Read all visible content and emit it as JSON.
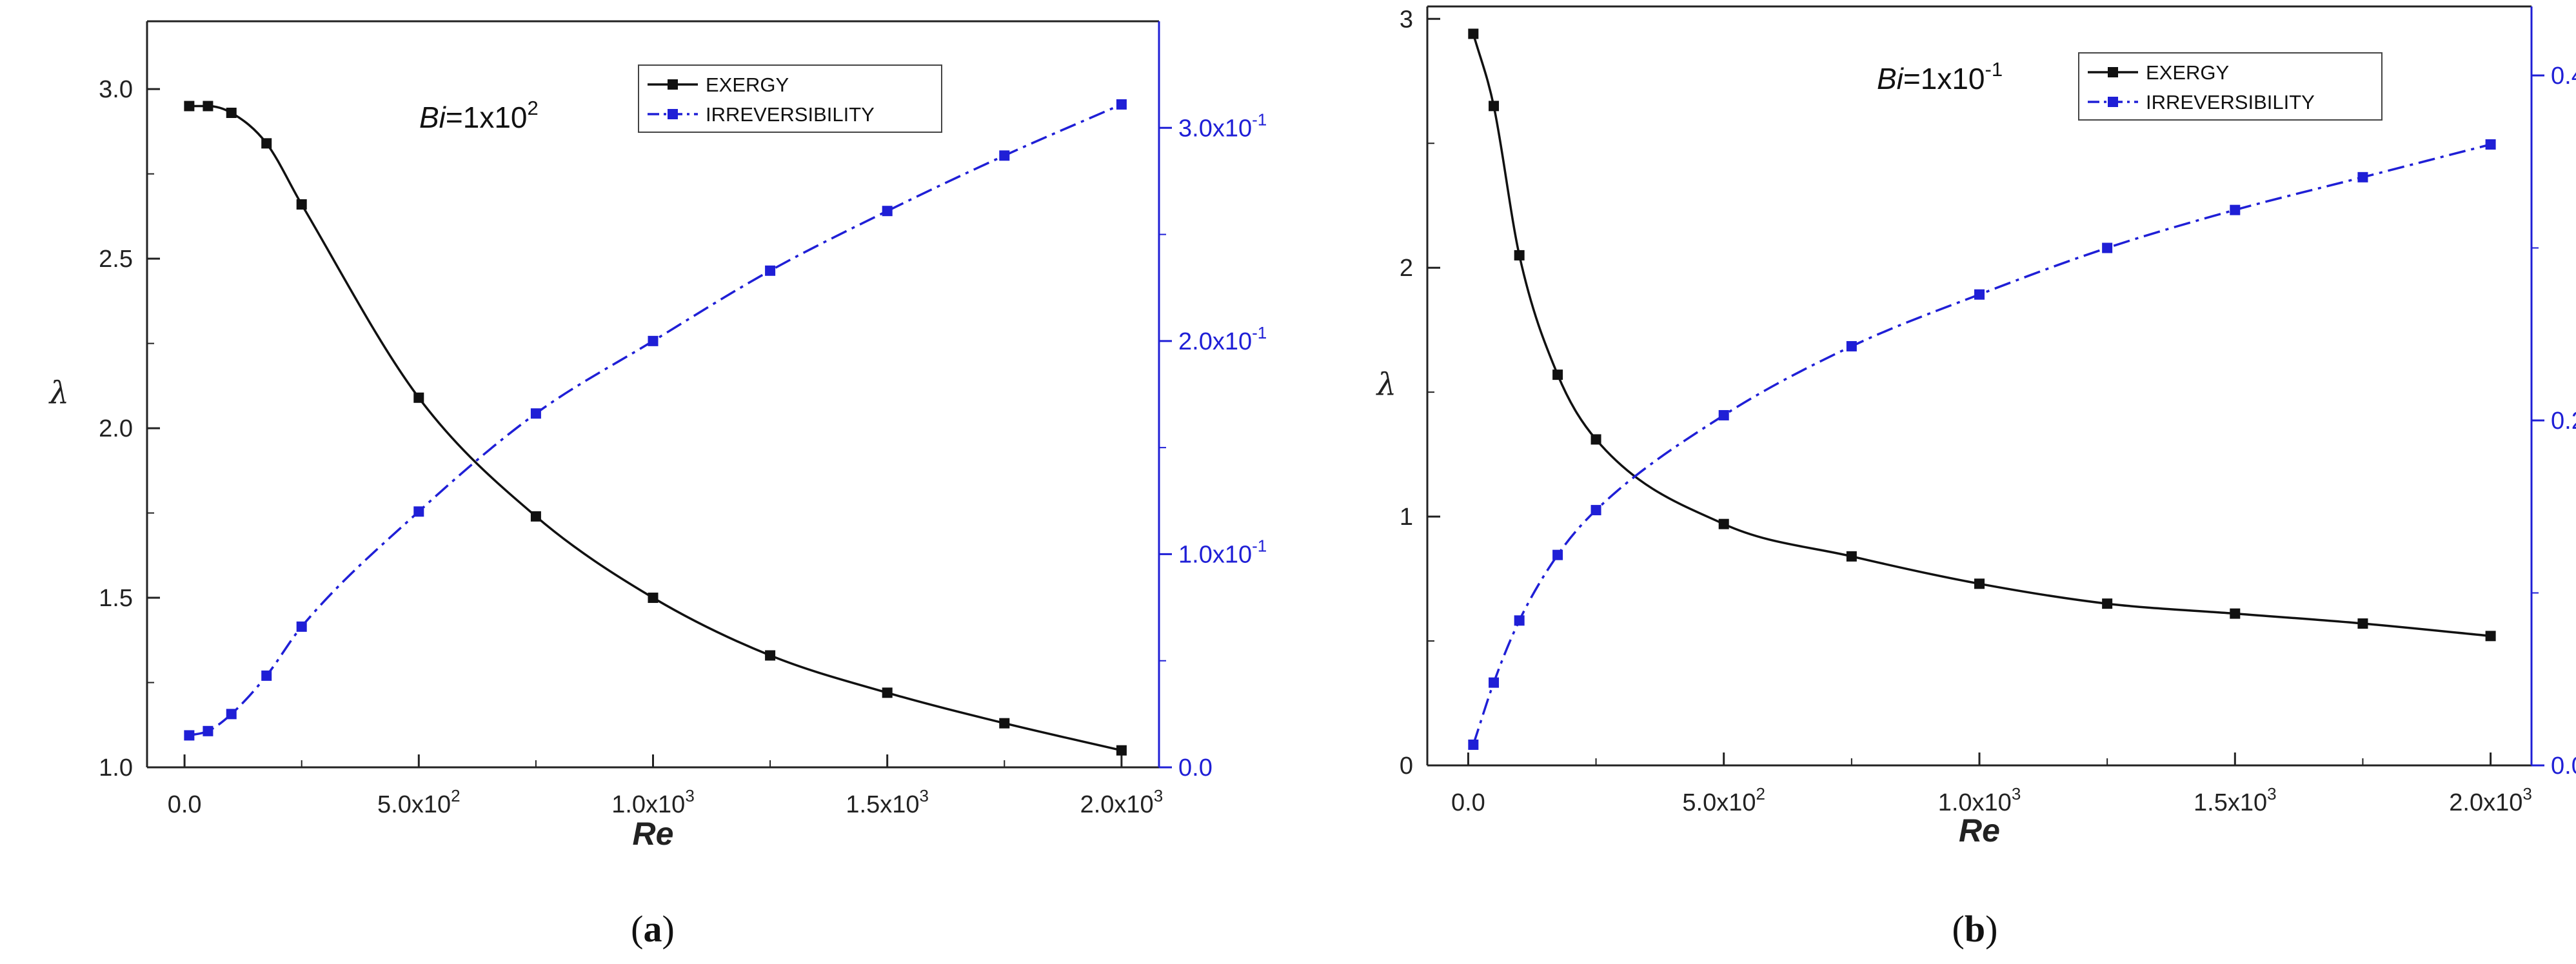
{
  "chart_data": [
    {
      "type": "line",
      "panel_label": "(a)",
      "panel_letter": "a",
      "annotation": "Bi=1x10^2",
      "annotation_parts": {
        "var": "Bi",
        "base": "=1x10",
        "exp": "2"
      },
      "xlabel": "Re",
      "ylabel": "λ",
      "xlim": [
        -80,
        2080
      ],
      "ylim": [
        1.0,
        3.2
      ],
      "y2lim": [
        0.0,
        0.35
      ],
      "x_ticks": [
        0,
        500,
        1000,
        1500,
        2000
      ],
      "x_tick_labels": [
        {
          "base": "0.0",
          "exp": ""
        },
        {
          "base": "5.0x10",
          "exp": "2"
        },
        {
          "base": "1.0x10",
          "exp": "3"
        },
        {
          "base": "1.5x10",
          "exp": "3"
        },
        {
          "base": "2.0x10",
          "exp": "3"
        }
      ],
      "y_ticks": [
        1.0,
        1.5,
        2.0,
        2.5,
        3.0
      ],
      "y_tick_labels": [
        "1.0",
        "1.5",
        "2.0",
        "2.5",
        "3.0"
      ],
      "y2_ticks": [
        0.0,
        0.1,
        0.2,
        0.3
      ],
      "y2_tick_labels": [
        {
          "base": "0.0",
          "exp": ""
        },
        {
          "base": "1.0x10",
          "exp": "-1"
        },
        {
          "base": "2.0x10",
          "exp": "-1"
        },
        {
          "base": "3.0x10",
          "exp": "-1"
        }
      ],
      "legend_position": "top-center",
      "series": [
        {
          "name": "EXERGY",
          "axis": "left",
          "color": "#111111",
          "style": "solid",
          "x": [
            10,
            50,
            100,
            175,
            250,
            500,
            750,
            1000,
            1250,
            1500,
            1750,
            2000
          ],
          "y": [
            2.95,
            2.95,
            2.93,
            2.84,
            2.66,
            2.09,
            1.74,
            1.5,
            1.33,
            1.22,
            1.13,
            1.05
          ]
        },
        {
          "name": "IRREVERSIBILITY",
          "axis": "right",
          "color": "#1f1fd6",
          "style": "dash-dot",
          "x": [
            10,
            50,
            100,
            175,
            250,
            500,
            750,
            1000,
            1250,
            1500,
            1750,
            2000
          ],
          "y": [
            0.015,
            0.017,
            0.025,
            0.043,
            0.066,
            0.12,
            0.166,
            0.2,
            0.233,
            0.261,
            0.287,
            0.311
          ]
        }
      ]
    },
    {
      "type": "line",
      "panel_label": "(b)",
      "panel_letter": "b",
      "annotation": "Bi=1x10^-1",
      "annotation_parts": {
        "var": "Bi",
        "base": "=1x10",
        "exp": "-1"
      },
      "xlabel": "Re",
      "ylabel": "λ",
      "xlim": [
        -80,
        2080
      ],
      "ylim": [
        0,
        3.05
      ],
      "y2lim": [
        0.0,
        0.44
      ],
      "x_ticks": [
        0,
        500,
        1000,
        1500,
        2000
      ],
      "x_tick_labels": [
        {
          "base": "0.0",
          "exp": ""
        },
        {
          "base": "5.0x10",
          "exp": "2"
        },
        {
          "base": "1.0x10",
          "exp": "3"
        },
        {
          "base": "1.5x10",
          "exp": "3"
        },
        {
          "base": "2.0x10",
          "exp": "3"
        }
      ],
      "y_ticks": [
        0,
        1,
        2,
        3
      ],
      "y_tick_labels": [
        "0",
        "1",
        "2",
        "3"
      ],
      "y2_ticks": [
        0.0,
        0.2,
        0.4
      ],
      "y2_tick_labels": [
        {
          "base": "0.0",
          "exp": ""
        },
        {
          "base": "0.2",
          "exp": ""
        },
        {
          "base": "0.4",
          "exp": ""
        }
      ],
      "legend_position": "top-center",
      "series": [
        {
          "name": "EXERGY",
          "axis": "left",
          "color": "#111111",
          "style": "solid",
          "x": [
            10,
            50,
            100,
            175,
            250,
            500,
            750,
            1000,
            1250,
            1500,
            1750,
            2000
          ],
          "y": [
            2.94,
            2.65,
            2.05,
            1.57,
            1.31,
            0.97,
            0.84,
            0.73,
            0.65,
            0.61,
            0.57,
            0.52
          ]
        },
        {
          "name": "IRREVERSIBILITY",
          "axis": "right",
          "color": "#1f1fd6",
          "style": "dash-dot",
          "x": [
            10,
            50,
            100,
            175,
            250,
            500,
            750,
            1000,
            1250,
            1500,
            1750,
            2000
          ],
          "y": [
            0.012,
            0.048,
            0.084,
            0.122,
            0.148,
            0.203,
            0.243,
            0.273,
            0.3,
            0.322,
            0.341,
            0.36
          ]
        }
      ]
    }
  ]
}
